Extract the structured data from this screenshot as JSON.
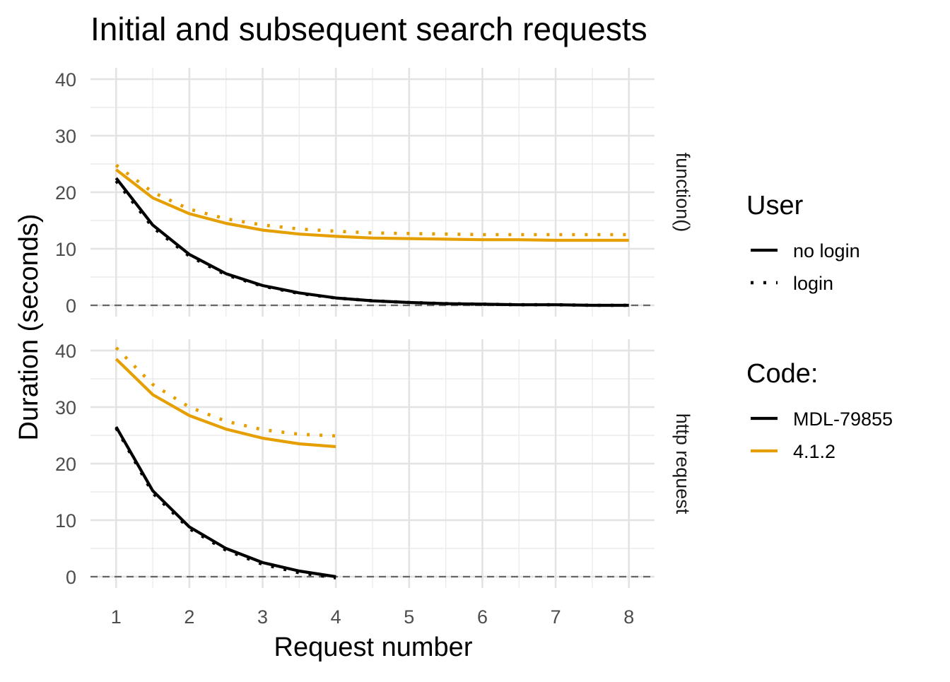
{
  "chart_data": {
    "type": "line",
    "title": "Initial and subsequent search requests",
    "xlabel": "Request number",
    "ylabel": "Duration (seconds)",
    "xlim": [
      0.65,
      8.35
    ],
    "ylim": [
      -2,
      42
    ],
    "x_ticks": [
      1,
      2,
      3,
      4,
      5,
      6,
      7,
      8
    ],
    "y_ticks": [
      0,
      10,
      20,
      30,
      40
    ],
    "grid": true,
    "reference_line": 0,
    "legend_position": "right",
    "legends": [
      {
        "title": "User",
        "kind": "linetype",
        "items": [
          {
            "label": "no login",
            "linetype": "solid"
          },
          {
            "label": "login",
            "linetype": "dotted"
          }
        ]
      },
      {
        "title": "Code:",
        "kind": "color",
        "items": [
          {
            "label": "MDL-79855",
            "color": "#000000"
          },
          {
            "label": "4.1.2",
            "color": "#E69F00"
          }
        ]
      }
    ],
    "panels": [
      {
        "label": "function()",
        "series": [
          {
            "code": "MDL-79855",
            "user": "no login",
            "x": [
              1,
              1.5,
              2,
              2.5,
              3,
              3.5,
              4,
              4.5,
              5,
              5.5,
              6,
              6.5,
              7,
              7.5,
              8
            ],
            "y": [
              22.5,
              14.2,
              9.0,
              5.6,
              3.5,
              2.2,
              1.3,
              0.8,
              0.5,
              0.3,
              0.2,
              0.1,
              0.1,
              0.0,
              0.0
            ]
          },
          {
            "code": "MDL-79855",
            "user": "login",
            "x": [
              1,
              1.5,
              2,
              2.5,
              3,
              3.5,
              4,
              4.5,
              5,
              5.5,
              6,
              6.5,
              7,
              7.5,
              8
            ],
            "y": [
              22.0,
              13.8,
              8.7,
              5.4,
              3.4,
              2.1,
              1.3,
              0.8,
              0.5,
              0.3,
              0.2,
              0.1,
              0.1,
              0.0,
              0.0
            ]
          },
          {
            "code": "4.1.2",
            "user": "no login",
            "x": [
              1,
              1.5,
              2,
              2.5,
              3,
              3.5,
              4,
              4.5,
              5,
              5.5,
              6,
              6.5,
              7,
              7.5,
              8
            ],
            "y": [
              24.0,
              19.0,
              16.2,
              14.5,
              13.3,
              12.6,
              12.2,
              11.9,
              11.8,
              11.7,
              11.6,
              11.6,
              11.5,
              11.5,
              11.5
            ]
          },
          {
            "code": "4.1.2",
            "user": "login",
            "x": [
              1,
              1.5,
              2,
              2.5,
              3,
              3.5,
              4,
              4.5,
              5,
              5.5,
              6,
              6.5,
              7,
              7.5,
              8
            ],
            "y": [
              24.8,
              20.0,
              17.0,
              15.3,
              14.2,
              13.5,
              13.1,
              12.8,
              12.7,
              12.6,
              12.5,
              12.5,
              12.5,
              12.5,
              12.5
            ]
          }
        ]
      },
      {
        "label": "http request",
        "series": [
          {
            "code": "MDL-79855",
            "user": "no login",
            "x": [
              1,
              1.5,
              2,
              2.5,
              3,
              3.5,
              4
            ],
            "y": [
              26.5,
              15.2,
              8.8,
              5.0,
              2.5,
              1.0,
              0.0
            ]
          },
          {
            "code": "MDL-79855",
            "user": "login",
            "x": [
              1,
              1.5,
              2,
              2.5,
              3,
              3.5,
              4
            ],
            "y": [
              26.3,
              14.8,
              8.5,
              4.7,
              2.2,
              0.7,
              -0.2
            ]
          },
          {
            "code": "4.1.2",
            "user": "no login",
            "x": [
              1,
              1.5,
              2,
              2.5,
              3,
              3.5,
              4
            ],
            "y": [
              38.5,
              32.2,
              28.5,
              26.1,
              24.5,
              23.5,
              23.0
            ]
          },
          {
            "code": "4.1.2",
            "user": "login",
            "x": [
              1,
              1.5,
              2,
              2.5,
              3,
              3.5,
              4
            ],
            "y": [
              40.5,
              34.0,
              30.0,
              27.5,
              26.0,
              25.2,
              24.9
            ]
          }
        ]
      }
    ]
  }
}
